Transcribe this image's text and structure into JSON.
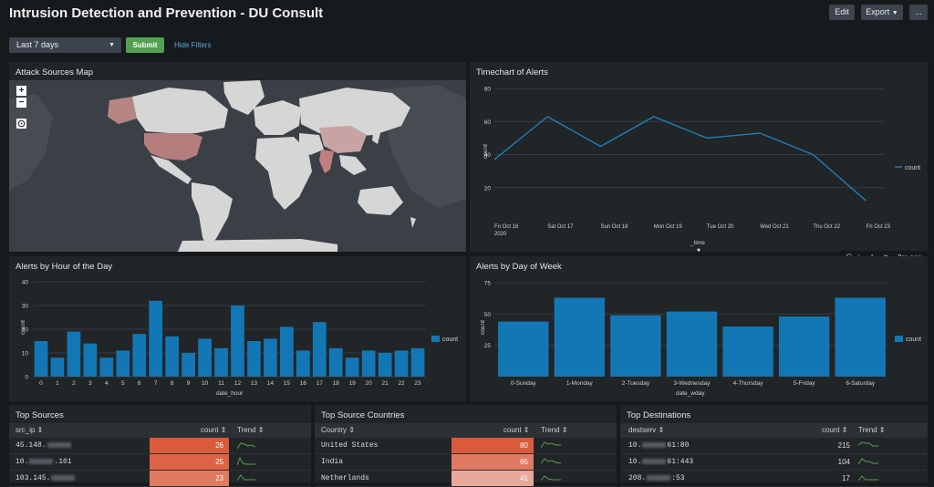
{
  "header": {
    "title": "Intrusion Detection and Prevention - DU Consult",
    "edit_label": "Edit",
    "export_label": "Export",
    "more_label": "..."
  },
  "filters": {
    "time_range": "Last 7 days",
    "submit_label": "Submit",
    "hide_filters_label": "Hide Filters"
  },
  "map_panel": {
    "title": "Attack Sources Map",
    "zoom_in": "+",
    "zoom_out": "−",
    "highlighted_countries": [
      "United States",
      "India",
      "China",
      "Canada",
      "Alaska"
    ]
  },
  "timechart": {
    "title": "Timechart of Alerts",
    "chart_data": {
      "type": "line",
      "x": [
        "Fri Oct 16",
        "Sat Oct 17",
        "Sun Oct 18",
        "Mon Oct 19",
        "Tue Oct 20",
        "Wed Oct 21",
        "Thu Oct 22",
        "Fri Oct 23"
      ],
      "x_sublabel": "2020",
      "series": [
        {
          "name": "count",
          "values": [
            37,
            63,
            45,
            63,
            50,
            53,
            40,
            12
          ]
        }
      ],
      "xlabel": "_time",
      "ylabel": "count",
      "yticks": [
        20,
        40,
        60,
        80
      ],
      "ylim": [
        0,
        85
      ],
      "legend": "right",
      "color": "#1e84c6"
    }
  },
  "panel_toolbar": {
    "search_icon": "search-icon",
    "download_icon": "download-icon",
    "info_icon": "info-icon",
    "refresh_icon": "refresh-icon",
    "age": "3m ago"
  },
  "hour_chart": {
    "title": "Alerts by Hour of the Day",
    "chart_data": {
      "type": "bar",
      "categories": [
        "0",
        "1",
        "2",
        "3",
        "4",
        "5",
        "6",
        "7",
        "8",
        "9",
        "10",
        "11",
        "12",
        "13",
        "14",
        "15",
        "16",
        "17",
        "18",
        "19",
        "20",
        "21",
        "22",
        "23"
      ],
      "series": [
        {
          "name": "count",
          "values": [
            15,
            8,
            19,
            14,
            8,
            11,
            18,
            32,
            17,
            10,
            16,
            12,
            30,
            15,
            16,
            21,
            11,
            23,
            12,
            8,
            11,
            10,
            11,
            12
          ]
        }
      ],
      "xlabel": "date_hour",
      "ylabel": "count",
      "yticks": [
        0,
        10,
        20,
        30,
        40
      ],
      "ylim": [
        0,
        40
      ],
      "legend": "right",
      "color": "#1477b5"
    }
  },
  "weekday_chart": {
    "title": "Alerts by Day of Week",
    "chart_data": {
      "type": "bar",
      "categories": [
        "0-Sunday",
        "1-Monday",
        "2-Tuesday",
        "3-Wednesday",
        "4-Thursday",
        "5-Friday",
        "6-Saturday"
      ],
      "series": [
        {
          "name": "count",
          "values": [
            44,
            63,
            49,
            52,
            40,
            48,
            63
          ]
        }
      ],
      "xlabel": "date_wday",
      "ylabel": "count",
      "yticks": [
        25,
        50,
        75
      ],
      "ylim": [
        0,
        75
      ],
      "legend": "right",
      "color": "#1477b5"
    }
  },
  "top_sources": {
    "title": "Top Sources",
    "col1": "src_ip ⇕",
    "col2": "count ⇕",
    "col3": "Trend ⇕",
    "rows": [
      {
        "a": "45.148.",
        "b": "",
        "count": "26",
        "color": "#dc5a3c"
      },
      {
        "a": "10.",
        "b": ".101",
        "count": "25",
        "color": "#de6346"
      },
      {
        "a": "103.145.",
        "b": "",
        "count": "23",
        "color": "#e27a60"
      }
    ]
  },
  "top_countries": {
    "title": "Top Source Countries",
    "col1": "Country ⇕",
    "col2": "count ⇕",
    "col3": "Trend ⇕",
    "rows": [
      {
        "a": "United States",
        "count": "80",
        "color": "#dc5a3c"
      },
      {
        "a": "India",
        "count": "65",
        "color": "#e07a63"
      },
      {
        "a": "Netherlands",
        "count": "41",
        "color": "#e8a89a"
      }
    ]
  },
  "top_destinations": {
    "title": "Top Destinations",
    "col1": "destserv ⇕",
    "col2": "count ⇕",
    "col3": "Trend ⇕",
    "rows": [
      {
        "a": "10.",
        "b": "61:80",
        "count": "215"
      },
      {
        "a": "10.",
        "b": "61:443",
        "count": "104"
      },
      {
        "a": "208.",
        "b": ":53",
        "count": "17"
      }
    ]
  }
}
